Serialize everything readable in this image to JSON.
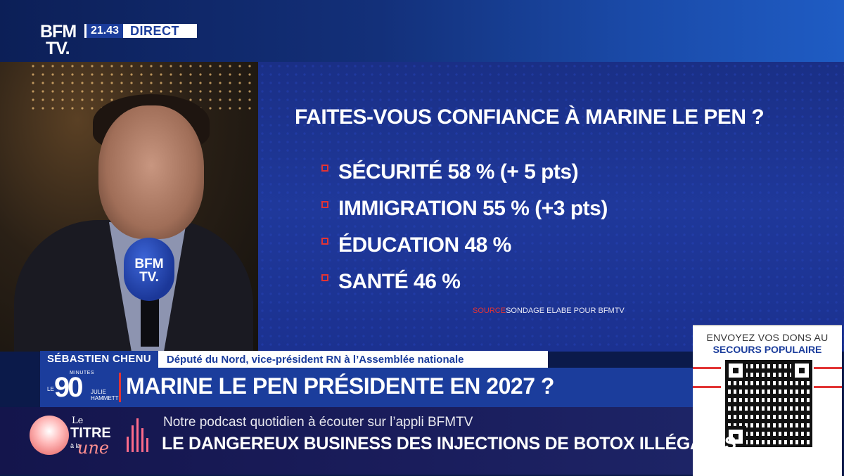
{
  "channel": {
    "logo_line1": "BFM",
    "logo_line2": "TV.",
    "time": "21.43",
    "live_label": "DIRECT"
  },
  "poll": {
    "question": "FAITES-VOUS CONFIANCE À MARINE LE PEN ?",
    "items": [
      {
        "label": "SÉCURITÉ 58 % (+ 5 pts)"
      },
      {
        "label": "IMMIGRATION 55 % (+3 pts)"
      },
      {
        "label": "ÉDUCATION 48 %"
      },
      {
        "label": "SANTÉ 46 %"
      }
    ],
    "source_label": "SOURCE",
    "source_text": "SONDAGE ELABE POUR BFMTV"
  },
  "mic": {
    "line1": "BFM",
    "line2": "TV."
  },
  "guest": {
    "name": "SÉBASTIEN CHENU",
    "role": "Député du Nord, vice-président RN à l’Assemblée nationale"
  },
  "show": {
    "minutes": "MINUTES",
    "le": "LE",
    "number": "90",
    "host_first": "JULIE",
    "host_last": "HAMMETT"
  },
  "headline": "MARINE LE PEN PRÉSIDENTE EN 2027 ?",
  "donation": {
    "line1": "ENVOYEZ VOS DONS AU",
    "line2": "SECOURS POPULAIRE"
  },
  "ticker": {
    "podcast_le": "Le",
    "podcast_titre": "TITRE",
    "podcast_a": "à la",
    "podcast_une": "une",
    "subtitle": "Notre podcast quotidien à écouter sur l’appli BFMTV",
    "headline": "LE DANGEREUX BUSINESS DES INJECTIONS DE BOTOX ILLÉGALES"
  },
  "colors": {
    "brand_blue": "#1b3d9c",
    "accent_red": "#e23434"
  }
}
